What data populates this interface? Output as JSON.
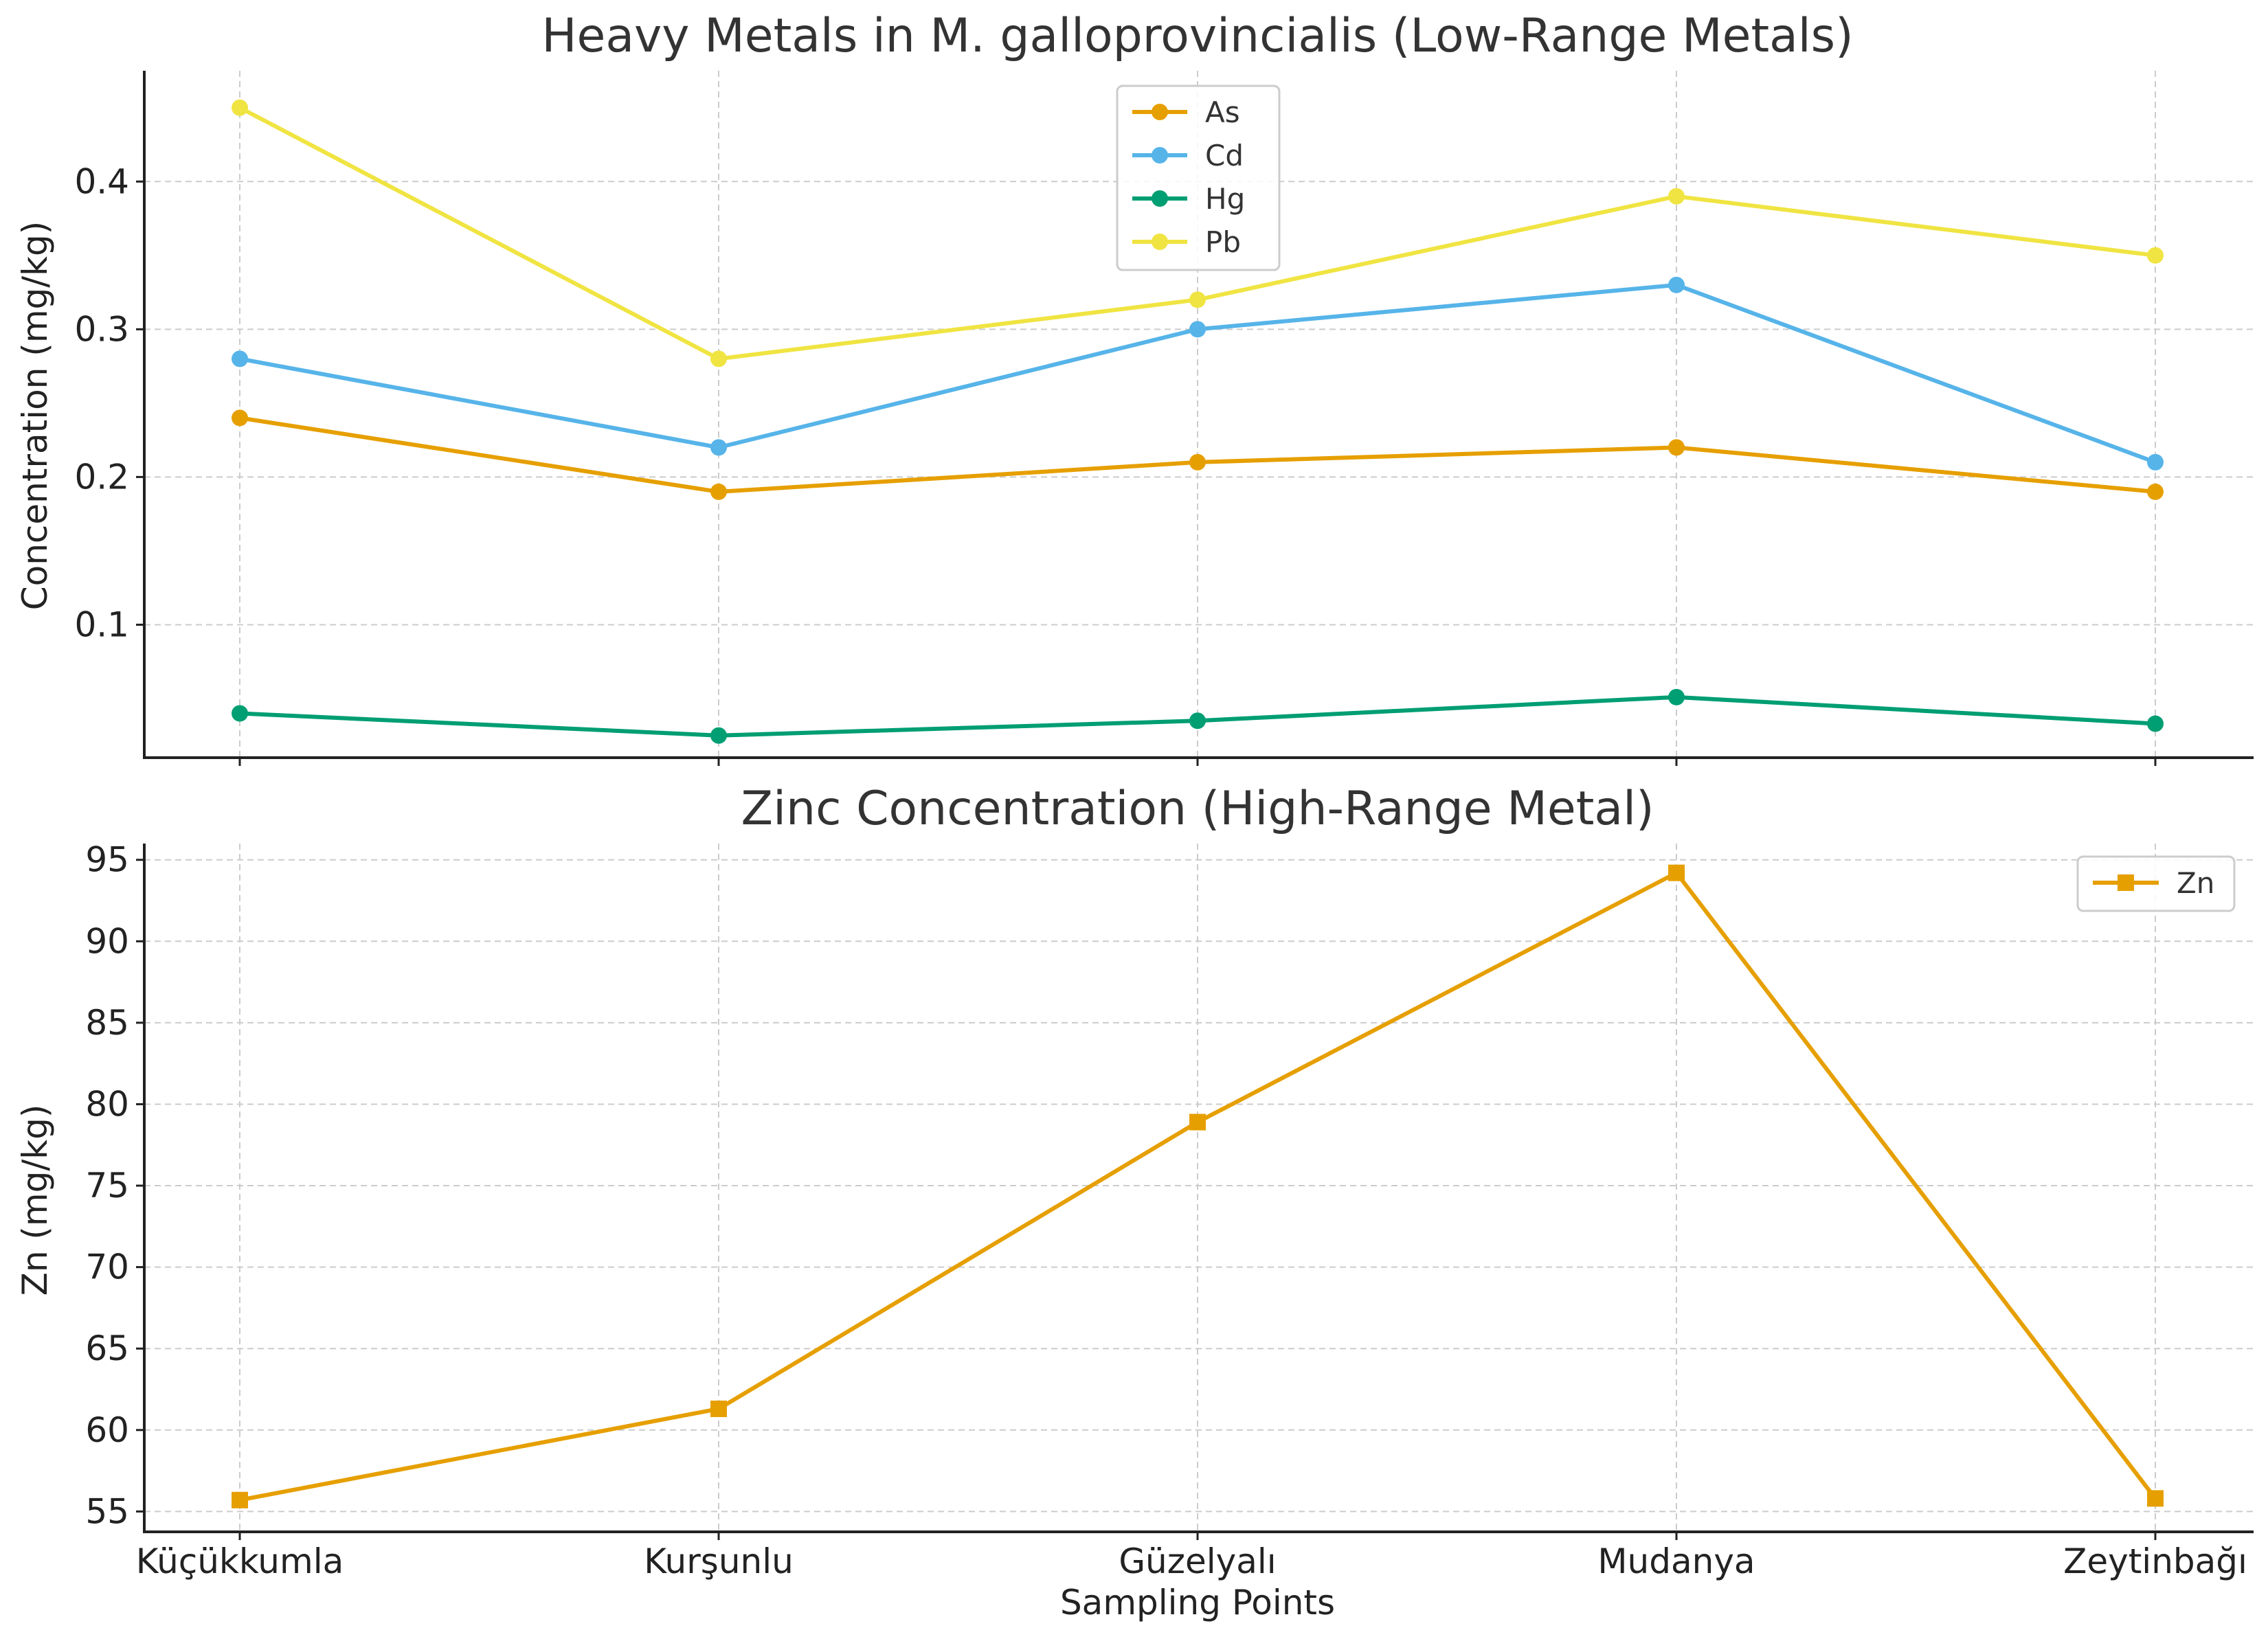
{
  "chart_data": [
    {
      "type": "line",
      "title": "Heavy Metals in M. galloprovincialis (Low-Range Metals)",
      "xlabel": "",
      "ylabel": "Concentration (mg/kg)",
      "categories": [
        "Küçükkumla",
        "Kurşunlu",
        "Güzelyalı",
        "Mudanya",
        "Zeytinbağı"
      ],
      "ylim": [
        0.01,
        0.475
      ],
      "yticks": [
        0.1,
        0.2,
        0.3,
        0.4
      ],
      "ytick_labels": [
        "0.1",
        "0.2",
        "0.3",
        "0.4"
      ],
      "grid": true,
      "legend_position": "upper center",
      "series": [
        {
          "name": "As",
          "color": "#E69F00",
          "marker": "circle",
          "values": [
            0.24,
            0.19,
            0.21,
            0.22,
            0.19
          ]
        },
        {
          "name": "Cd",
          "color": "#56B4E9",
          "marker": "circle",
          "values": [
            0.28,
            0.22,
            0.3,
            0.33,
            0.21
          ]
        },
        {
          "name": "Hg",
          "color": "#009E73",
          "marker": "circle",
          "values": [
            0.04,
            0.025,
            0.035,
            0.051,
            0.033
          ]
        },
        {
          "name": "Pb",
          "color": "#F0E442",
          "marker": "circle",
          "values": [
            0.45,
            0.28,
            0.32,
            0.39,
            0.35
          ]
        }
      ]
    },
    {
      "type": "line",
      "title": "Zinc Concentration (High-Range Metal)",
      "xlabel": "Sampling Points",
      "ylabel": "Zn (mg/kg)",
      "categories": [
        "Küçükkumla",
        "Kurşunlu",
        "Güzelyalı",
        "Mudanya",
        "Zeytinbağı"
      ],
      "ylim": [
        53.75,
        96.0
      ],
      "yticks": [
        55,
        60,
        65,
        70,
        75,
        80,
        85,
        90,
        95
      ],
      "ytick_labels": [
        "55",
        "60",
        "65",
        "70",
        "75",
        "80",
        "85",
        "90",
        "95"
      ],
      "grid": true,
      "legend_position": "upper right",
      "series": [
        {
          "name": "Zn",
          "color": "#E69F00",
          "marker": "square",
          "values": [
            55.7,
            61.3,
            78.9,
            94.2,
            55.8
          ]
        }
      ]
    }
  ]
}
